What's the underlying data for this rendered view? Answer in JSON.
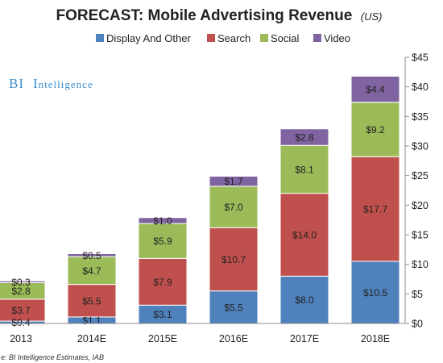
{
  "header": {
    "title": "FORECAST: Mobile Advertising Revenue",
    "title_suffix": "(US)"
  },
  "brand": {
    "first": "BI",
    "second_initial": "I",
    "second_rest": "ntelligence"
  },
  "source": "e: BI Intelligence Estimates, IAB",
  "colors": {
    "Display And Other": "#4f81bd",
    "Search": "#c0504d",
    "Social": "#9bbb59",
    "Video": "#8064a2",
    "brand": "#3d8fd0"
  },
  "chart_data": {
    "type": "bar",
    "stacked": true,
    "categories": [
      "2013",
      "2014E",
      "2015E",
      "2016E",
      "2017E",
      "2018E"
    ],
    "series": [
      {
        "name": "Display And Other",
        "values": [
          0.4,
          1.1,
          3.1,
          5.5,
          8.0,
          10.5
        ],
        "labels": [
          "$0.4",
          "$1.1",
          "$3.1",
          "$5.5",
          "$8.0",
          "$10.5"
        ]
      },
      {
        "name": "Search",
        "values": [
          3.7,
          5.5,
          7.9,
          10.7,
          14.0,
          17.7
        ],
        "labels": [
          "$3.7",
          "$5.5",
          "$7.9",
          "$10.7",
          "$14.0",
          "$17.7"
        ]
      },
      {
        "name": "Social",
        "values": [
          2.8,
          4.7,
          5.9,
          7.0,
          8.1,
          9.2
        ],
        "labels": [
          "$2.8",
          "$4.7",
          "$5.9",
          "$7.0",
          "$8.1",
          "$9.2"
        ]
      },
      {
        "name": "Video",
        "values": [
          0.3,
          0.5,
          1.0,
          1.7,
          2.8,
          4.4
        ],
        "labels": [
          "$0.3",
          "$0.5",
          "$1.0",
          "$1.7",
          "$2.8",
          "$4.4"
        ]
      }
    ],
    "ylim": [
      0,
      45
    ],
    "y_ticks": [
      0,
      5,
      10,
      15,
      20,
      25,
      30,
      35,
      40,
      45
    ],
    "y_tick_labels": [
      "$0",
      "$5",
      "$10",
      "$15",
      "$20",
      "$25",
      "$30",
      "$35",
      "$40",
      "$45"
    ],
    "y_axis_side": "right",
    "grid": false,
    "legend_position": "top"
  }
}
